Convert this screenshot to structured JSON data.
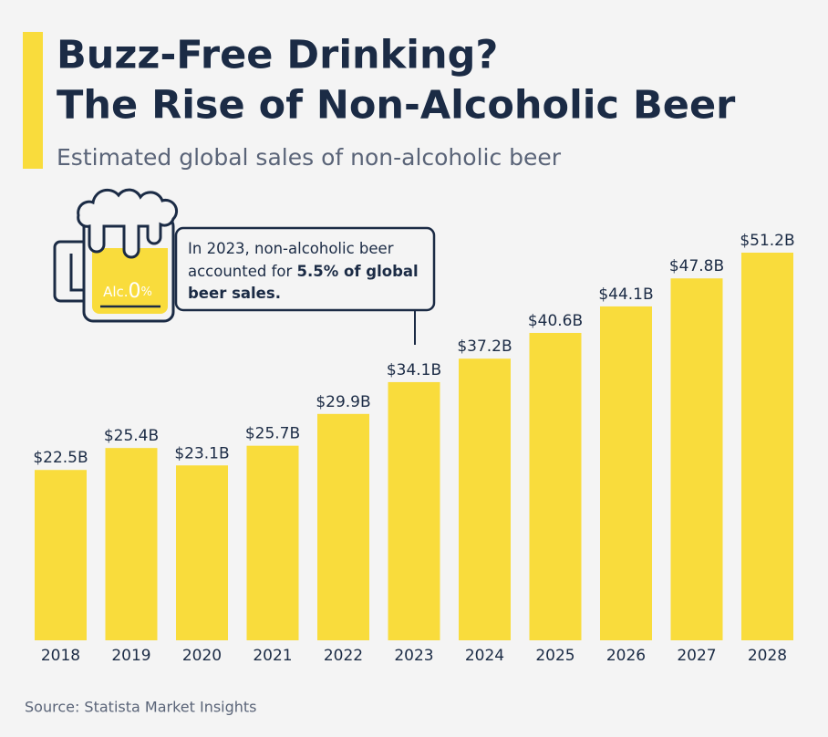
{
  "chart_data": {
    "type": "bar",
    "title": [
      "Buzz-Free Drinking?",
      "The Rise of Non-Alcoholic Beer"
    ],
    "subtitle": "Estimated global sales of non-alcoholic beer",
    "categories": [
      "2018",
      "2019",
      "2020",
      "2021",
      "2022",
      "2023",
      "2024",
      "2025",
      "2026",
      "2027",
      "2028"
    ],
    "values": [
      22.5,
      25.4,
      23.1,
      25.7,
      29.9,
      34.1,
      37.2,
      40.6,
      44.1,
      47.8,
      51.2
    ],
    "value_labels": [
      "$22.5B",
      "$25.4B",
      "$23.1B",
      "$25.7B",
      "$29.9B",
      "$34.1B",
      "$37.2B",
      "$40.6B",
      "$44.1B",
      "$47.8B",
      "$51.2B"
    ],
    "color": "#f9dc3c",
    "annotation": {
      "text": "In 2023, non-alcoholic beer accounted for ",
      "bold": "5.5% of global beer sales."
    },
    "icon_label": [
      "Alc.",
      "0",
      "%"
    ],
    "source": "Source: Statista Market Insights"
  }
}
